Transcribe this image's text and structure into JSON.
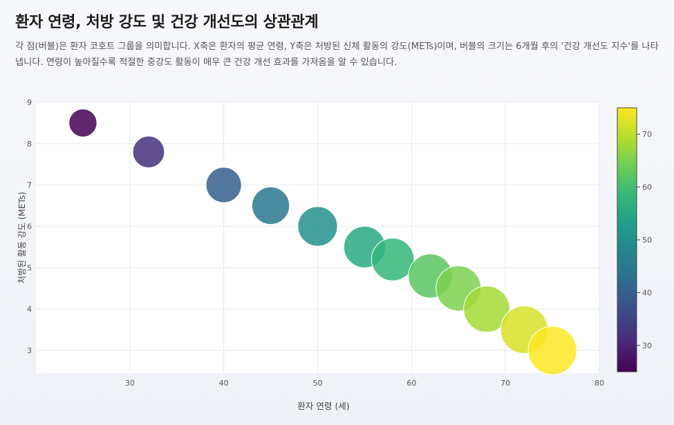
{
  "header": {
    "title": "환자 연령, 처방 강도 및 건강 개선도의 상관관계",
    "description": "각 점(버블)은 환자 코호트 그룹을 의미합니다. X축은 환자의 평균 연령, Y축은 처방된 신체 활동의 강도(METs)이며, 버블의 크기는 6개월 후의 '건강 개선도 지수'를 나타냅니다. 연령이 높아질수록 적절한 중강도 활동이 매우 큰 건강 개선 효과를 가져옴을 알 수 있습니다."
  },
  "chart_data": {
    "type": "scatter",
    "subtype": "bubble",
    "title": "환자 연령, 처방 강도 및 건강 개선도의 상관관계",
    "xlabel": "환자 연령 (세)",
    "ylabel": "처방된 활동 강도 (METs)",
    "xlim": [
      20,
      80
    ],
    "ylim": [
      2.45,
      9
    ],
    "x_ticks": [
      30,
      40,
      50,
      60,
      70,
      80
    ],
    "y_ticks": [
      3,
      4,
      5,
      6,
      7,
      8,
      9
    ],
    "grid": true,
    "colorscale": "viridis",
    "color_range": [
      25,
      75
    ],
    "colorbar_ticks": [
      30,
      40,
      50,
      60,
      70
    ],
    "points": [
      {
        "x": 25,
        "y": 8.5,
        "size": 25
      },
      {
        "x": 32,
        "y": 7.8,
        "size": 32
      },
      {
        "x": 40,
        "y": 7.0,
        "size": 40
      },
      {
        "x": 45,
        "y": 6.5,
        "size": 45
      },
      {
        "x": 50,
        "y": 6.0,
        "size": 50
      },
      {
        "x": 55,
        "y": 5.5,
        "size": 55
      },
      {
        "x": 58,
        "y": 5.2,
        "size": 58
      },
      {
        "x": 62,
        "y": 4.8,
        "size": 62
      },
      {
        "x": 65,
        "y": 4.5,
        "size": 65
      },
      {
        "x": 68,
        "y": 4.0,
        "size": 68
      },
      {
        "x": 72,
        "y": 3.5,
        "size": 72
      },
      {
        "x": 75,
        "y": 3.0,
        "size": 75
      }
    ]
  }
}
